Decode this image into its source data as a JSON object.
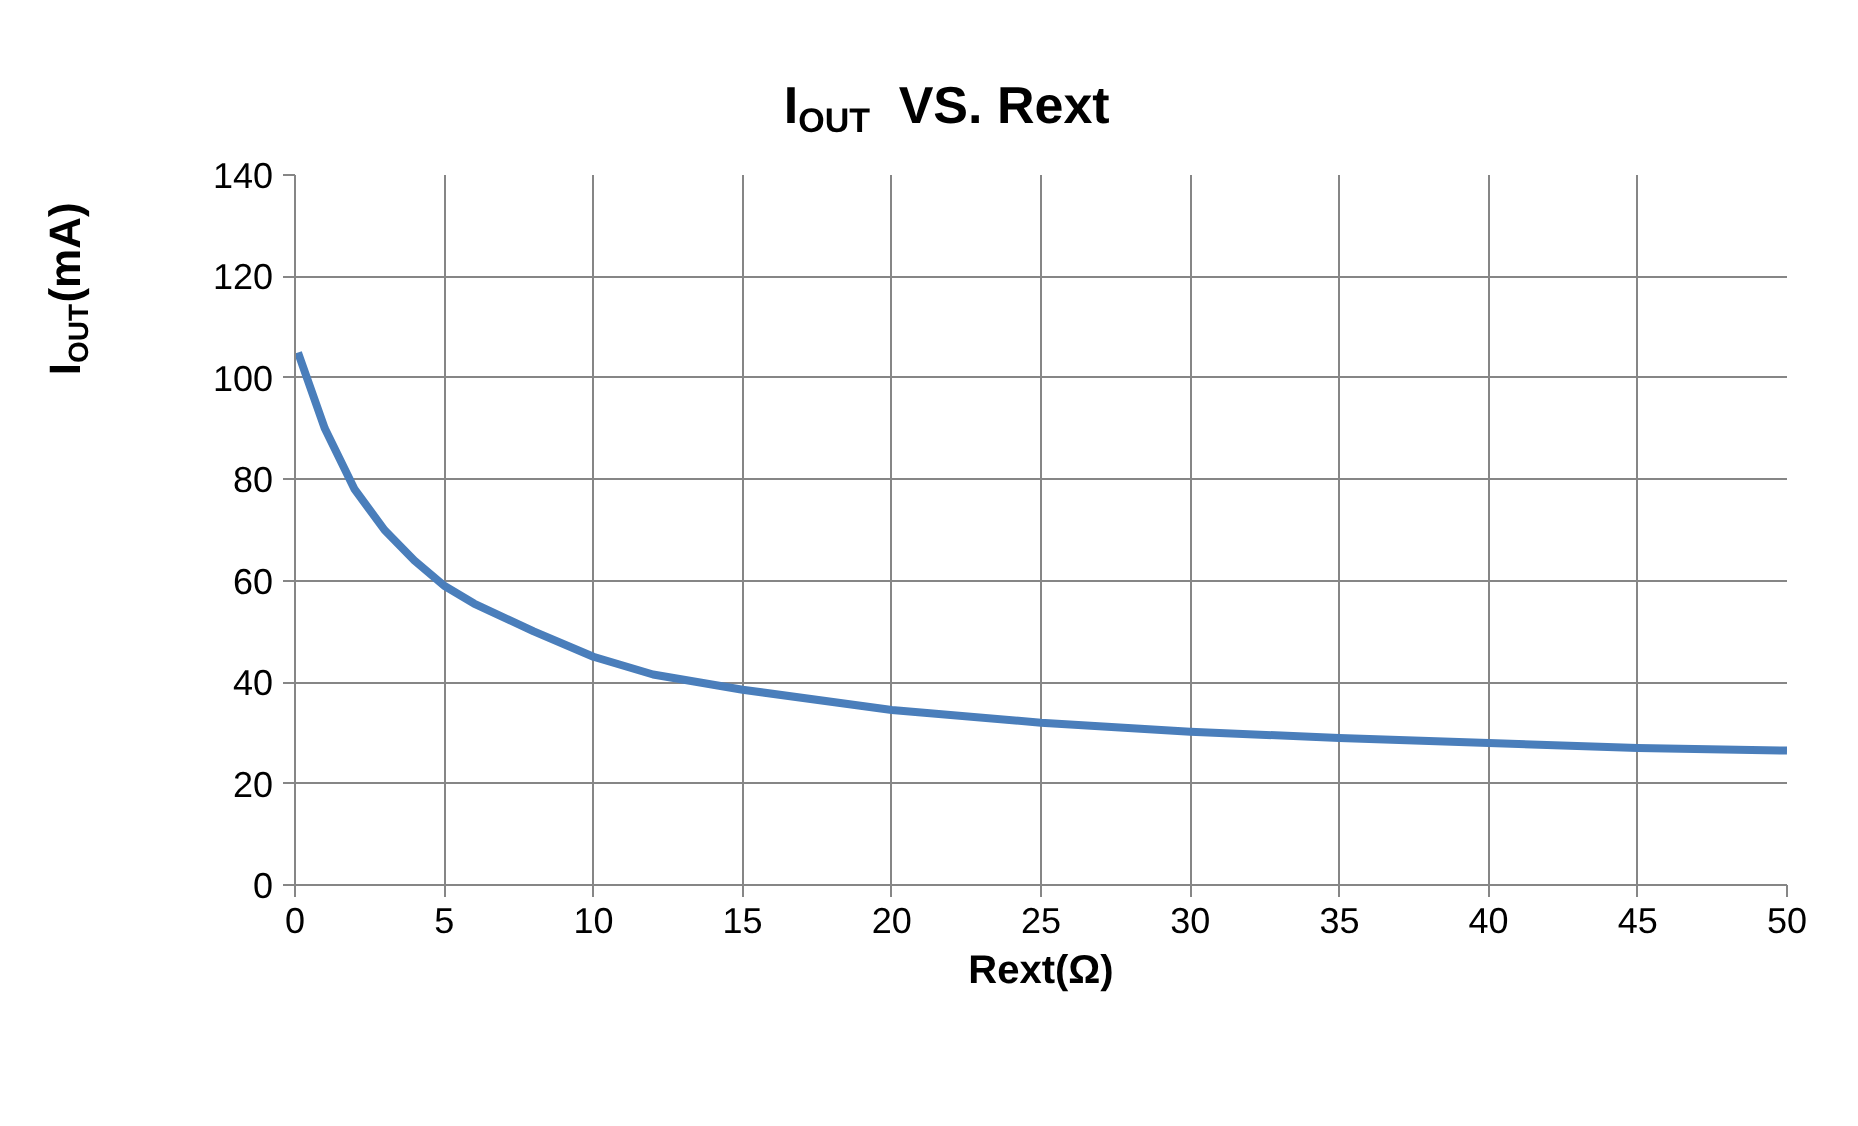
{
  "chart_data": {
    "type": "line",
    "title": "I$_{OUT}$  VS. Rext",
    "xlabel": "Rext(Ω)",
    "ylabel": "I$_{OUT}$(mA)",
    "x": [
      0.1,
      1,
      2,
      3,
      4,
      5,
      6,
      8,
      10,
      12,
      15,
      20,
      25,
      30,
      35,
      40,
      45,
      50
    ],
    "series": [
      {
        "color": "#4a7ebb",
        "values": [
          105,
          90,
          78,
          70,
          64,
          59,
          55.5,
          50,
          45,
          41.5,
          38.5,
          34.5,
          32,
          30.2,
          29,
          28,
          27,
          26.5
        ]
      }
    ],
    "xlim": [
      0,
      50
    ],
    "xticks": [
      0,
      5,
      10,
      15,
      20,
      25,
      30,
      35,
      40,
      45,
      50
    ],
    "ylim": [
      0,
      140
    ],
    "yticks": [
      0,
      20,
      40,
      60,
      80,
      100,
      120,
      140
    ],
    "grid": true,
    "marker": "none",
    "line_style": "solid"
  }
}
